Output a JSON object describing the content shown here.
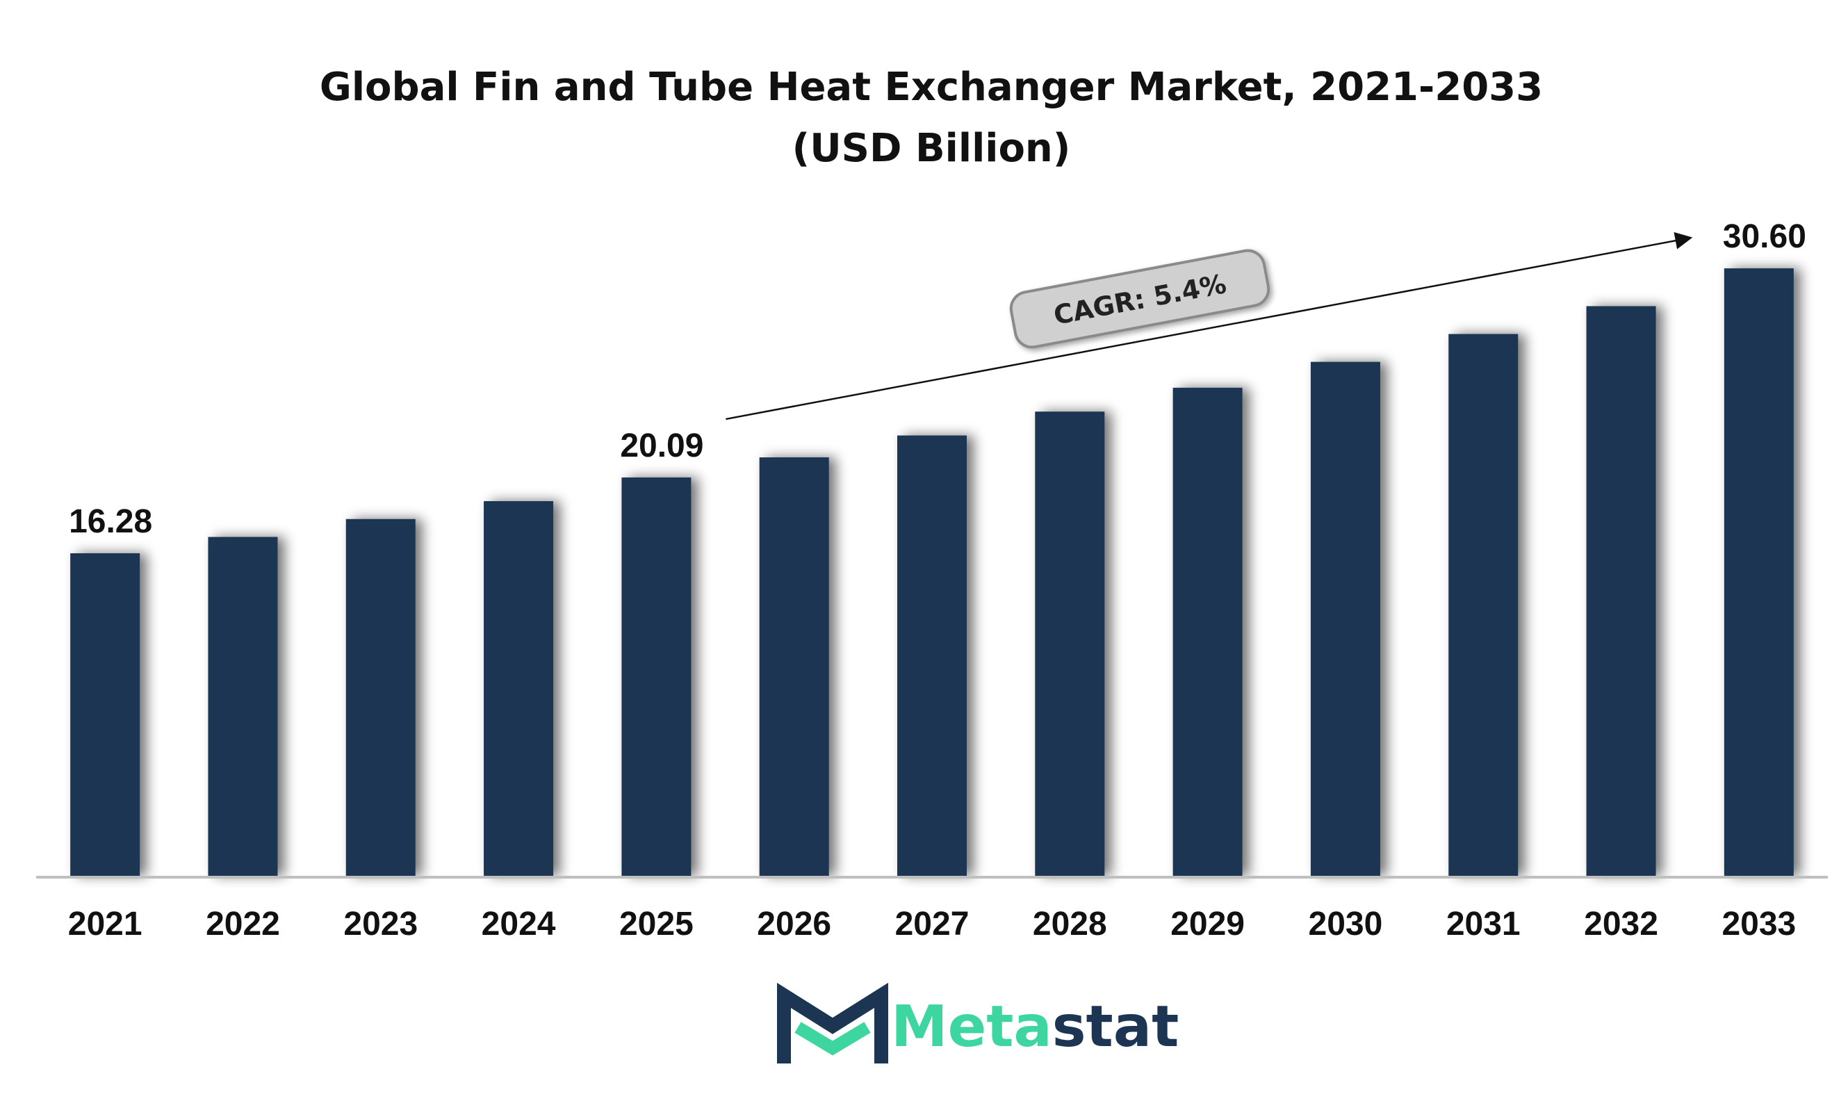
{
  "chart_data": {
    "type": "bar",
    "title": "Global Fin and Tube Heat Exchanger Market, 2021-2033 (USD Billion)",
    "categories": [
      "2021",
      "2022",
      "2023",
      "2024",
      "2025",
      "2026",
      "2027",
      "2028",
      "2029",
      "2030",
      "2031",
      "2032",
      "2033"
    ],
    "values": [
      16.28,
      17.1,
      18.0,
      18.9,
      20.09,
      21.1,
      22.2,
      23.4,
      24.6,
      25.9,
      27.3,
      28.7,
      30.6
    ],
    "data_labels": [
      {
        "category": "2021",
        "text": "16.28"
      },
      {
        "category": "2025",
        "text": "20.09"
      },
      {
        "category": "2033",
        "text": "30.60"
      }
    ],
    "ylim": [
      0,
      32
    ],
    "xlabel": "",
    "ylabel": "",
    "grid": false,
    "legend": "none",
    "annotation": {
      "text": "CAGR: 5.4%",
      "arrow_from": "2025",
      "arrow_to": "2033"
    },
    "colors": {
      "bar": "#1c3553",
      "axis": "#bfbfbf",
      "callout_fill": "#d0d0d0",
      "callout_border": "#8a8a8a"
    }
  },
  "logo": {
    "text_accent": "Meta",
    "text_main": "stat",
    "accent_color": "#3ed6a0",
    "main_color": "#1c3553"
  }
}
